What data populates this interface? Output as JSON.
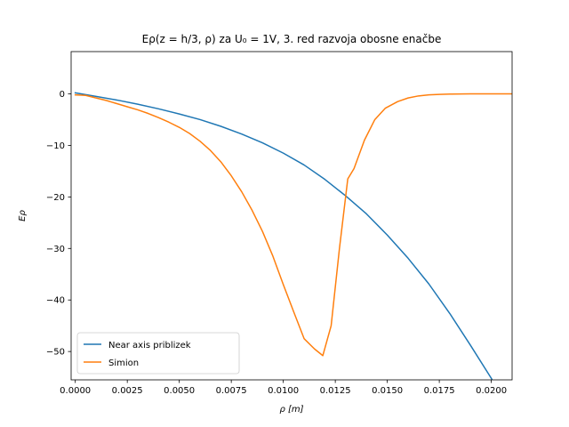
{
  "chart_data": {
    "type": "line",
    "title": "Eρ(z = h/3, ρ) za U₀ = 1V, 3. red razvoja obosne enačbe",
    "xlabel": "ρ   [m]",
    "ylabel": "Eρ",
    "xlim": [
      -0.0002,
      0.021
    ],
    "ylim": [
      -55.5,
      8.2
    ],
    "xticks": [
      0.0,
      0.0025,
      0.005,
      0.0075,
      0.01,
      0.0125,
      0.015,
      0.0175,
      0.02
    ],
    "xtick_labels": [
      "0.0000",
      "0.0025",
      "0.0050",
      "0.0075",
      "0.0100",
      "0.0125",
      "0.0150",
      "0.0175",
      "0.0200"
    ],
    "yticks": [
      0,
      -10,
      -20,
      -30,
      -40,
      -50
    ],
    "ytick_labels": [
      "0",
      "−10",
      "−20",
      "−30",
      "−40",
      "−50"
    ],
    "grid": false,
    "legend_position": "lower-left",
    "series": [
      {
        "name": "Near axis priblizek",
        "color": "#1f77b4",
        "x": [
          0.0,
          0.001,
          0.002,
          0.003,
          0.004,
          0.005,
          0.006,
          0.007,
          0.008,
          0.009,
          0.01,
          0.011,
          0.012,
          0.013,
          0.014,
          0.015,
          0.016,
          0.017,
          0.018,
          0.019,
          0.02,
          0.0205
        ],
        "y": [
          0.2,
          -0.5,
          -1.2,
          -2.0,
          -2.9,
          -3.9,
          -5.0,
          -6.3,
          -7.8,
          -9.5,
          -11.5,
          -13.8,
          -16.6,
          -19.8,
          -23.3,
          -27.4,
          -31.9,
          -36.9,
          -42.6,
          -48.8,
          -55.2,
          -59.0
        ]
      },
      {
        "name": "Simion",
        "color": "#ff7f0e",
        "x": [
          0.0,
          0.0005,
          0.001,
          0.0015,
          0.002,
          0.0025,
          0.003,
          0.0035,
          0.004,
          0.0045,
          0.005,
          0.0055,
          0.006,
          0.0065,
          0.007,
          0.0075,
          0.008,
          0.0085,
          0.009,
          0.0095,
          0.01,
          0.0105,
          0.011,
          0.0115,
          0.0119,
          0.0123,
          0.0127,
          0.0131,
          0.0134,
          0.0139,
          0.0144,
          0.0149,
          0.0155,
          0.016,
          0.0165,
          0.017,
          0.0175,
          0.018,
          0.019,
          0.02,
          0.021
        ],
        "y": [
          -0.2,
          -0.3,
          -0.8,
          -1.3,
          -1.9,
          -2.5,
          -3.1,
          -3.8,
          -4.6,
          -5.5,
          -6.5,
          -7.7,
          -9.2,
          -11.0,
          -13.2,
          -15.9,
          -19.0,
          -22.6,
          -26.7,
          -31.5,
          -37.0,
          -42.3,
          -47.5,
          -49.5,
          -50.8,
          -45.0,
          -30.0,
          -16.5,
          -14.5,
          -9.0,
          -5.0,
          -2.8,
          -1.5,
          -0.8,
          -0.4,
          -0.2,
          -0.1,
          -0.05,
          0.0,
          0.0,
          0.0
        ]
      }
    ]
  }
}
